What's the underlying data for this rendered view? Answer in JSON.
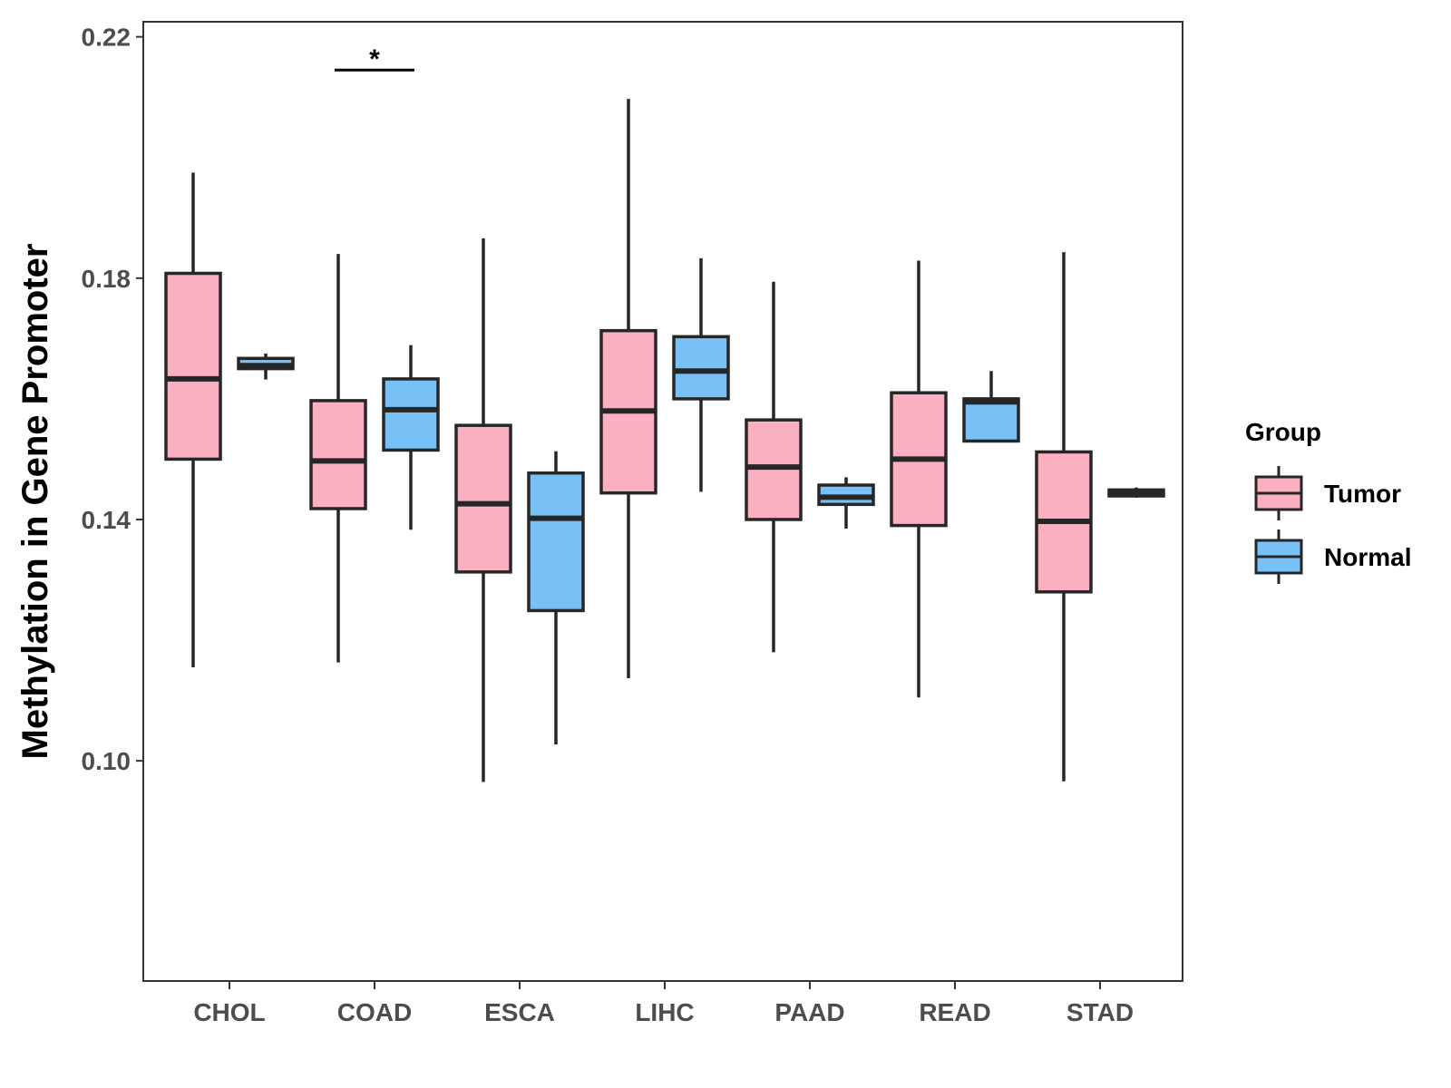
{
  "chart_data": {
    "type": "boxplot",
    "title": "",
    "xlabel": "",
    "ylabel": "Methylation in Gene Promoter",
    "ylim": [
      0.0635,
      0.2225
    ],
    "yticks": [
      0.1,
      0.14,
      0.18,
      0.22
    ],
    "ytick_labels": [
      "0.10",
      "0.14",
      "0.18",
      "0.22"
    ],
    "categories": [
      "CHOL",
      "COAD",
      "ESCA",
      "LIHC",
      "PAAD",
      "READ",
      "STAD"
    ],
    "legend": {
      "title": "Group",
      "position": "right",
      "entries": [
        {
          "name": "Tumor",
          "color": "#fbb0c1"
        },
        {
          "name": "Normal",
          "color": "#78c1f6"
        }
      ]
    },
    "series": [
      {
        "name": "Tumor",
        "color": "#fbb0c1",
        "boxes": [
          {
            "category": "CHOL",
            "min": 0.1155,
            "q1": 0.15,
            "median": 0.1633,
            "q3": 0.1808,
            "max": 0.1975
          },
          {
            "category": "COAD",
            "min": 0.1163,
            "q1": 0.1418,
            "median": 0.1497,
            "q3": 0.1597,
            "max": 0.184
          },
          {
            "category": "ESCA",
            "min": 0.0965,
            "q1": 0.1313,
            "median": 0.1426,
            "q3": 0.1556,
            "max": 0.1866
          },
          {
            "category": "LIHC",
            "min": 0.1137,
            "q1": 0.1444,
            "median": 0.158,
            "q3": 0.1713,
            "max": 0.2097
          },
          {
            "category": "PAAD",
            "min": 0.118,
            "q1": 0.14,
            "median": 0.1487,
            "q3": 0.1565,
            "max": 0.1794
          },
          {
            "category": "READ",
            "min": 0.1105,
            "q1": 0.139,
            "median": 0.15,
            "q3": 0.161,
            "max": 0.1829
          },
          {
            "category": "STAD",
            "min": 0.0966,
            "q1": 0.128,
            "median": 0.1397,
            "q3": 0.1512,
            "max": 0.1843
          }
        ]
      },
      {
        "name": "Normal",
        "color": "#78c1f6",
        "boxes": [
          {
            "category": "CHOL",
            "min": 0.1632,
            "q1": 0.165,
            "median": 0.1655,
            "q3": 0.1667,
            "max": 0.1675
          },
          {
            "category": "COAD",
            "min": 0.1383,
            "q1": 0.1515,
            "median": 0.1582,
            "q3": 0.1633,
            "max": 0.1689
          },
          {
            "category": "ESCA",
            "min": 0.1027,
            "q1": 0.1249,
            "median": 0.1402,
            "q3": 0.1477,
            "max": 0.1513
          },
          {
            "category": "LIHC",
            "min": 0.1446,
            "q1": 0.16,
            "median": 0.1646,
            "q3": 0.1703,
            "max": 0.1833
          },
          {
            "category": "PAAD",
            "min": 0.1385,
            "q1": 0.1425,
            "median": 0.1437,
            "q3": 0.1457,
            "max": 0.147
          },
          {
            "category": "READ",
            "min": 0.153,
            "q1": 0.153,
            "median": 0.1595,
            "q3": 0.16,
            "max": 0.1646
          },
          {
            "category": "STAD",
            "min": 0.1436,
            "q1": 0.1439,
            "median": 0.1445,
            "q3": 0.1449,
            "max": 0.1453
          }
        ]
      }
    ],
    "annotations": [
      {
        "category": "COAD",
        "y": 0.2145,
        "text": "*"
      }
    ]
  }
}
